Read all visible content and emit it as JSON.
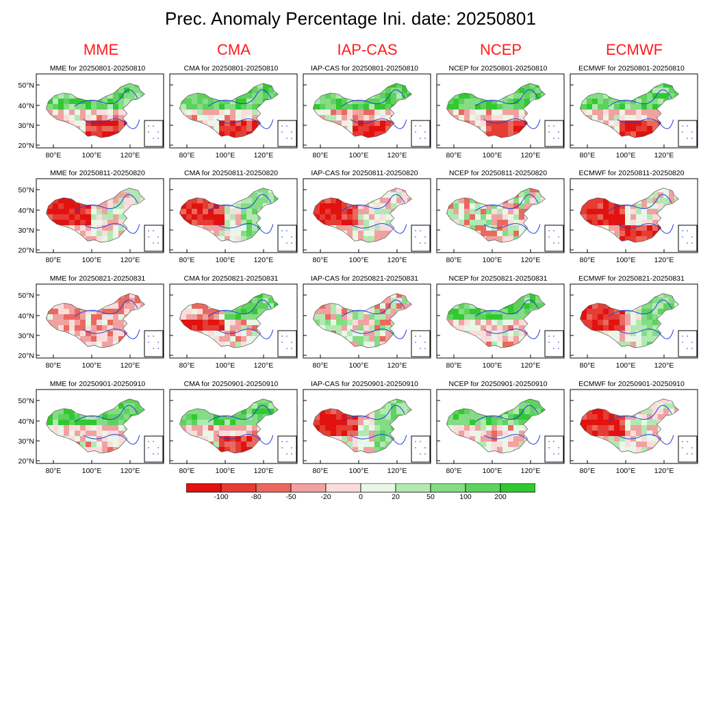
{
  "title": "Prec. Anomaly Percentage Ini. date: 20250801",
  "models": [
    "MME",
    "CMA",
    "IAP-CAS",
    "NCEP",
    "ECMWF"
  ],
  "periods": [
    "20250801-20250810",
    "20250811-20250820",
    "20250821-20250831",
    "20250901-20250910"
  ],
  "panel_titles": [
    [
      "MME for 20250801-20250810",
      "CMA for 20250801-20250810",
      "IAP-CAS for 20250801-20250810",
      "NCEP for 20250801-20250810",
      "ECMWF for 20250801-20250810"
    ],
    [
      "MME for 20250811-20250820",
      "CMA for 20250811-20250820",
      "IAP-CAS for 20250811-20250820",
      "NCEP for 20250811-20250820",
      "ECMWF for 20250811-20250820"
    ],
    [
      "MME for 20250821-20250831",
      "CMA for 20250821-20250831",
      "IAP-CAS for 20250821-20250831",
      "NCEP for 20250821-20250831",
      "ECMWF for 20250821-20250831"
    ],
    [
      "MME for 20250901-20250910",
      "CMA for 20250901-20250910",
      "IAP-CAS for 20250901-20250910",
      "NCEP for 20250901-20250910",
      "ECMWF for 20250901-20250910"
    ]
  ],
  "lat_ticks": [
    "50°N",
    "40°N",
    "30°N",
    "20°N"
  ],
  "lon_ticks": [
    "80°E",
    "100°E",
    "120°E"
  ],
  "legend": {
    "labels": [
      "-100",
      "-80",
      "-50",
      "-20",
      "0",
      "20",
      "50",
      "100",
      "200"
    ],
    "colors": [
      "#e1120f",
      "#e53c34",
      "#e9695f",
      "#f0a2a0",
      "#fbdcdc",
      "#e8f7e7",
      "#b2e9b2",
      "#84dc84",
      "#5ed15e",
      "#32c832"
    ]
  },
  "anomaly_patterns": [
    [
      "north-wet south-dry",
      "north-wet south-dry",
      "north-wet south-dry",
      "north-wet south-dry",
      "north-wet south-dry"
    ],
    [
      "west-dry",
      "west-dry east-wet",
      "west-dry",
      "mixed-weak",
      "west-dry south-dry"
    ],
    [
      "weak-dry",
      "west-dry north-wet",
      "weak-mixed",
      "north-wet",
      "west-dry east-wet"
    ],
    [
      "north-wet",
      "north-wet south-dry",
      "east-wet west-dry",
      "north-wet",
      "west-dry"
    ]
  ]
}
